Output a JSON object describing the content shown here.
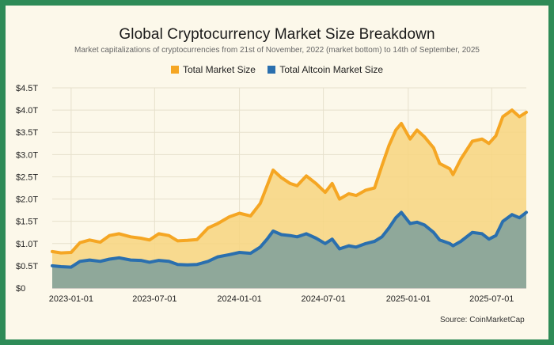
{
  "title": "Global Cryptocurrency Market Size Breakdown",
  "subtitle": "Market capitalizations of cryptocurrencies from 21st of November, 2022 (market bottom) to 14th of September, 2025",
  "source": "Source: CoinMarketCap",
  "colors": {
    "frame": "#2e8b57",
    "background": "#fcf8ea",
    "total_line": "#f5a623",
    "total_fill": "#f7d57f",
    "altcoin_line": "#2a6fae",
    "altcoin_fill": "#8fa89a",
    "grid": "#e6e0cc"
  },
  "chart_data": {
    "type": "area",
    "title": "Global Cryptocurrency Market Size Breakdown",
    "subtitle": "Market capitalizations of cryptocurrencies from 21st of November, 2022 (market bottom) to 14th of September, 2025",
    "xlabel": "",
    "ylabel": "",
    "ylim": [
      0,
      4.5
    ],
    "xlim": [
      "2022-11-21",
      "2025-09-14"
    ],
    "y_ticks": [
      "$0",
      "$0.5T",
      "$1.0T",
      "$1.5T",
      "$2.0T",
      "$2.5T",
      "$3.0T",
      "$3.5T",
      "$4.0T",
      "$4.5T"
    ],
    "y_tick_values": [
      0,
      0.5,
      1.0,
      1.5,
      2.0,
      2.5,
      3.0,
      3.5,
      4.0,
      4.5
    ],
    "x_ticks": [
      "2023-01-01",
      "2023-07-01",
      "2024-01-01",
      "2024-07-01",
      "2025-01-01",
      "2025-07-01"
    ],
    "grid": true,
    "legend": "top-center",
    "series": [
      {
        "name": "Total Market Size",
        "x": [
          "2022-11-21",
          "2022-12-10",
          "2023-01-01",
          "2023-01-20",
          "2023-02-10",
          "2023-03-05",
          "2023-03-25",
          "2023-04-15",
          "2023-05-10",
          "2023-06-01",
          "2023-06-20",
          "2023-07-10",
          "2023-08-01",
          "2023-08-20",
          "2023-09-10",
          "2023-10-01",
          "2023-10-25",
          "2023-11-15",
          "2023-12-10",
          "2024-01-01",
          "2024-01-25",
          "2024-02-15",
          "2024-03-01",
          "2024-03-14",
          "2024-04-01",
          "2024-04-20",
          "2024-05-05",
          "2024-05-25",
          "2024-06-15",
          "2024-07-05",
          "2024-07-20",
          "2024-08-05",
          "2024-08-25",
          "2024-09-10",
          "2024-10-01",
          "2024-10-20",
          "2024-11-05",
          "2024-11-20",
          "2024-12-05",
          "2024-12-17",
          "2025-01-05",
          "2025-01-20",
          "2025-02-05",
          "2025-02-25",
          "2025-03-10",
          "2025-04-01",
          "2025-04-08",
          "2025-04-25",
          "2025-05-20",
          "2025-06-10",
          "2025-06-25",
          "2025-07-10",
          "2025-07-25",
          "2025-08-14",
          "2025-08-30",
          "2025-09-14"
        ],
        "values": [
          0.82,
          0.79,
          0.8,
          1.02,
          1.08,
          1.03,
          1.18,
          1.22,
          1.15,
          1.12,
          1.08,
          1.22,
          1.18,
          1.06,
          1.07,
          1.09,
          1.35,
          1.45,
          1.6,
          1.68,
          1.62,
          1.9,
          2.3,
          2.65,
          2.48,
          2.35,
          2.3,
          2.52,
          2.35,
          2.15,
          2.35,
          2.0,
          2.12,
          2.08,
          2.2,
          2.25,
          2.75,
          3.2,
          3.55,
          3.7,
          3.35,
          3.55,
          3.4,
          3.15,
          2.8,
          2.68,
          2.55,
          2.9,
          3.3,
          3.35,
          3.25,
          3.42,
          3.85,
          4.0,
          3.85,
          3.95
        ]
      },
      {
        "name": "Total Altcoin Market Size",
        "x": [
          "2022-11-21",
          "2022-12-10",
          "2023-01-01",
          "2023-01-20",
          "2023-02-10",
          "2023-03-05",
          "2023-03-25",
          "2023-04-15",
          "2023-05-10",
          "2023-06-01",
          "2023-06-20",
          "2023-07-10",
          "2023-08-01",
          "2023-08-20",
          "2023-09-10",
          "2023-10-01",
          "2023-10-25",
          "2023-11-15",
          "2023-12-10",
          "2024-01-01",
          "2024-01-25",
          "2024-02-15",
          "2024-03-01",
          "2024-03-14",
          "2024-04-01",
          "2024-04-20",
          "2024-05-05",
          "2024-05-25",
          "2024-06-15",
          "2024-07-05",
          "2024-07-20",
          "2024-08-05",
          "2024-08-25",
          "2024-09-10",
          "2024-10-01",
          "2024-10-20",
          "2024-11-05",
          "2024-11-20",
          "2024-12-05",
          "2024-12-17",
          "2025-01-05",
          "2025-01-20",
          "2025-02-05",
          "2025-02-25",
          "2025-03-10",
          "2025-04-01",
          "2025-04-08",
          "2025-04-25",
          "2025-05-20",
          "2025-06-10",
          "2025-06-25",
          "2025-07-10",
          "2025-07-25",
          "2025-08-14",
          "2025-08-30",
          "2025-09-14"
        ],
        "values": [
          0.5,
          0.48,
          0.47,
          0.6,
          0.63,
          0.6,
          0.65,
          0.68,
          0.63,
          0.62,
          0.58,
          0.62,
          0.6,
          0.53,
          0.52,
          0.53,
          0.6,
          0.7,
          0.75,
          0.8,
          0.78,
          0.92,
          1.1,
          1.28,
          1.2,
          1.18,
          1.15,
          1.22,
          1.12,
          1.0,
          1.1,
          0.88,
          0.95,
          0.92,
          1.0,
          1.05,
          1.15,
          1.35,
          1.58,
          1.7,
          1.45,
          1.48,
          1.42,
          1.25,
          1.08,
          1.0,
          0.95,
          1.05,
          1.25,
          1.22,
          1.1,
          1.18,
          1.5,
          1.65,
          1.58,
          1.7
        ]
      }
    ]
  }
}
